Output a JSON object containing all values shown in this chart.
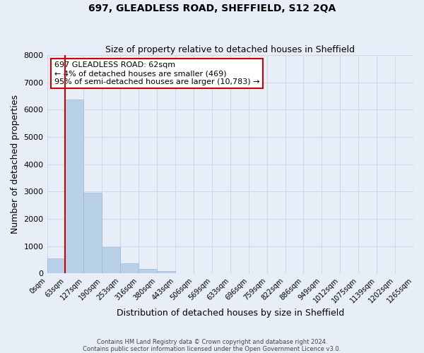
{
  "title": "697, GLEADLESS ROAD, SHEFFIELD, S12 2QA",
  "subtitle": "Size of property relative to detached houses in Sheffield",
  "xlabel": "Distribution of detached houses by size in Sheffield",
  "ylabel": "Number of detached properties",
  "bin_labels": [
    "0sqm",
    "63sqm",
    "127sqm",
    "190sqm",
    "253sqm",
    "316sqm",
    "380sqm",
    "443sqm",
    "506sqm",
    "569sqm",
    "633sqm",
    "696sqm",
    "759sqm",
    "822sqm",
    "886sqm",
    "949sqm",
    "1012sqm",
    "1075sqm",
    "1139sqm",
    "1202sqm",
    "1265sqm"
  ],
  "bar_heights": [
    560,
    6380,
    2950,
    975,
    380,
    155,
    75,
    0,
    0,
    0,
    0,
    0,
    0,
    0,
    0,
    0,
    0,
    0,
    0,
    0
  ],
  "bar_color": "#b8d0e8",
  "bar_edge_color": "#a0b8d0",
  "marker_line_color": "#cc0000",
  "annotation_title": "697 GLEADLESS ROAD: 62sqm",
  "annotation_line1": "← 4% of detached houses are smaller (469)",
  "annotation_line2": "95% of semi-detached houses are larger (10,783) →",
  "annotation_box_color": "#ffffff",
  "annotation_box_edge_color": "#cc0000",
  "ylim": [
    0,
    8000
  ],
  "yticks": [
    0,
    1000,
    2000,
    3000,
    4000,
    5000,
    6000,
    7000,
    8000
  ],
  "grid_color": "#d0d8e8",
  "bg_color": "#e8eef8",
  "footer1": "Contains HM Land Registry data © Crown copyright and database right 2024.",
  "footer2": "Contains public sector information licensed under the Open Government Licence v3.0."
}
